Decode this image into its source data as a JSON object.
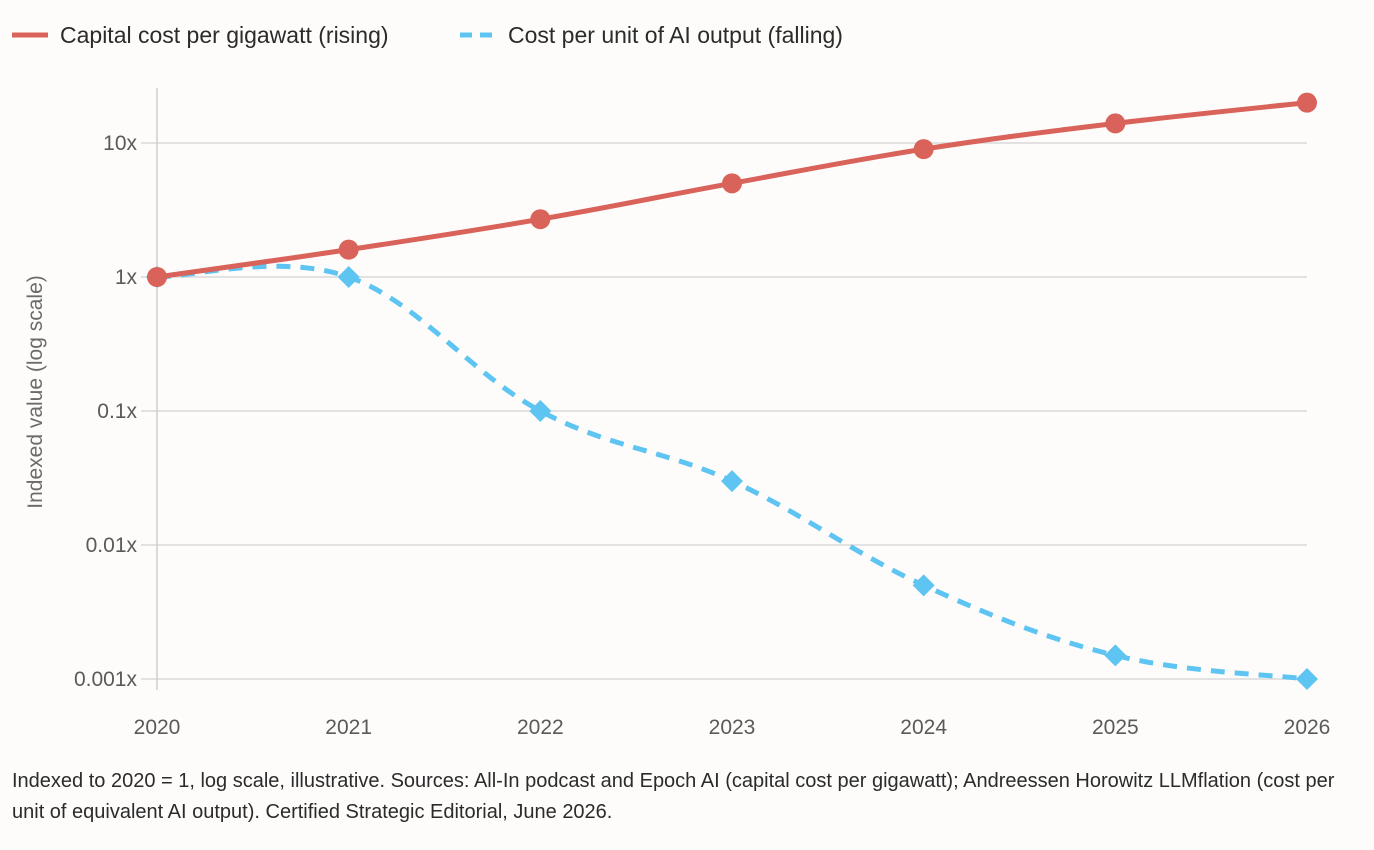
{
  "chart_data": {
    "type": "line",
    "x": [
      "2020",
      "2021",
      "2022",
      "2023",
      "2024",
      "2025",
      "2026"
    ],
    "series": [
      {
        "name": "Capital cost per gigawatt (rising)",
        "values": [
          1,
          1.6,
          2.7,
          5,
          9,
          14,
          20
        ],
        "color": "#d9635a",
        "line_style": "solid",
        "marker": "circle"
      },
      {
        "name": "Cost per unit of AI output (falling)",
        "values": [
          1,
          1,
          0.1,
          0.03,
          0.005,
          0.0015,
          0.001
        ],
        "color": "#5ec4f2",
        "line_style": "dashed",
        "marker": "diamond"
      }
    ],
    "ylabel": "Indexed value (log scale)",
    "xlabel": "",
    "yscale": "log",
    "ylim": [
      0.001,
      25
    ],
    "y_ticks": [
      {
        "value": 10,
        "label": "10x"
      },
      {
        "value": 1,
        "label": "1x"
      },
      {
        "value": 0.1,
        "label": "0.1x"
      },
      {
        "value": 0.01,
        "label": "0.01x"
      },
      {
        "value": 0.001,
        "label": "0.001x"
      }
    ],
    "grid": "horizontal",
    "legend_position": "top-left"
  },
  "caption": "Indexed to 2020 = 1, log scale, illustrative. Sources: All-In podcast and Epoch AI (capital cost per gigawatt); Andreessen Horowitz LLMflation (cost per unit of equivalent AI output). Certified Strategic Editorial, June 2026."
}
